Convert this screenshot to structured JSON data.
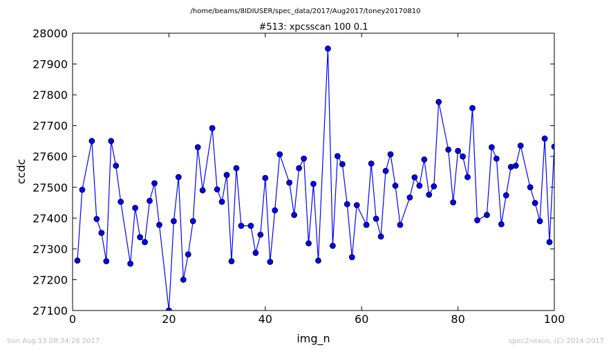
{
  "page": {
    "suptitle": "/home/beams/8IDIUSER/spec_data/2017/Aug2017/toney20170810",
    "footer_left": "Sun Aug 13 08:34:26 2017",
    "footer_right": "spec2nexus, (C) 2014-2017"
  },
  "chart_data": {
    "type": "line",
    "title": "#513: xpcsscan 100 0.1",
    "xlabel": "img_n",
    "ylabel": "ccdc",
    "xlim": [
      0,
      100
    ],
    "ylim": [
      27100,
      28000
    ],
    "xticks": [
      0,
      20,
      40,
      60,
      80,
      100
    ],
    "yticks": [
      27100,
      27200,
      27300,
      27400,
      27500,
      27600,
      27700,
      27800,
      27900,
      28000
    ],
    "grid": false,
    "colors": {
      "series": "#0000ff",
      "marker": "#0000ff"
    },
    "series": [
      {
        "x": [
          1,
          2,
          4,
          5,
          6,
          7,
          8,
          9,
          10,
          12,
          13,
          14,
          15,
          16,
          17,
          18,
          20,
          21,
          22,
          23,
          24,
          25,
          26,
          27,
          29,
          30,
          31,
          32,
          33,
          34,
          35,
          37,
          38,
          39,
          40,
          41,
          42,
          43,
          45,
          46,
          47,
          48,
          49,
          50,
          51,
          53,
          54,
          55,
          56,
          57,
          58,
          59,
          61,
          62,
          63,
          64,
          65,
          66,
          67,
          68,
          70,
          71,
          72,
          73,
          74,
          75,
          76,
          78,
          79,
          80,
          81,
          82,
          83,
          84,
          86,
          87,
          88,
          89,
          90,
          91,
          92,
          93,
          95,
          96,
          97,
          98,
          99,
          100
        ],
        "y": [
          27262,
          27492,
          27650,
          27397,
          27352,
          27260,
          27650,
          27570,
          27453,
          27252,
          27433,
          27338,
          27322,
          27456,
          27513,
          27378,
          27100,
          27390,
          27533,
          27200,
          27282,
          27390,
          27630,
          27490,
          27692,
          27493,
          27453,
          27540,
          27260,
          27562,
          27375,
          27375,
          27287,
          27346,
          27530,
          27258,
          27425,
          27607,
          27515,
          27410,
          27562,
          27593,
          27318,
          27511,
          27262,
          27950,
          27310,
          27601,
          27575,
          27445,
          27273,
          27442,
          27378,
          27577,
          27398,
          27340,
          27553,
          27607,
          27505,
          27378,
          27467,
          27532,
          27505,
          27590,
          27476,
          27503,
          27777,
          27622,
          27451,
          27618,
          27600,
          27533,
          27757,
          27393,
          27410,
          27630,
          27593,
          27380,
          27474,
          27566,
          27570,
          27635,
          27500,
          27449,
          27390,
          27658,
          27322,
          27632
        ]
      }
    ]
  }
}
